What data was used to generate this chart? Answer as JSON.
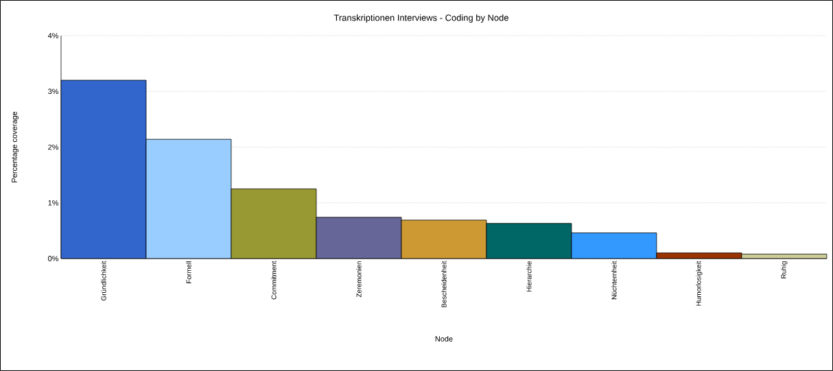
{
  "chart_data": {
    "type": "bar",
    "title": "Transkriptionen Interviews - Coding by Node",
    "xlabel": "Node",
    "ylabel": "Percentage coverage",
    "categories": [
      "Gründlichkeit",
      "Formell",
      "Commitment",
      "Zeremonien",
      "Bescheidenheit",
      "Hierarchie",
      "Nüchternheit",
      "Humorlosigkeit",
      "Ruhig"
    ],
    "values": [
      3.2,
      2.14,
      1.25,
      0.74,
      0.69,
      0.63,
      0.46,
      0.1,
      0.08
    ],
    "colors": [
      "#3366cc",
      "#99ccff",
      "#999933",
      "#666699",
      "#cc9933",
      "#006666",
      "#3399ff",
      "#993300",
      "#cccc99"
    ],
    "ylim": [
      0,
      4
    ],
    "yticks": [
      {
        "value": 0,
        "label": "0%"
      },
      {
        "value": 1,
        "label": "1%"
      },
      {
        "value": 2,
        "label": "2%"
      },
      {
        "value": 3,
        "label": "3%"
      },
      {
        "value": 4,
        "label": "4%"
      }
    ],
    "grid": "y"
  }
}
